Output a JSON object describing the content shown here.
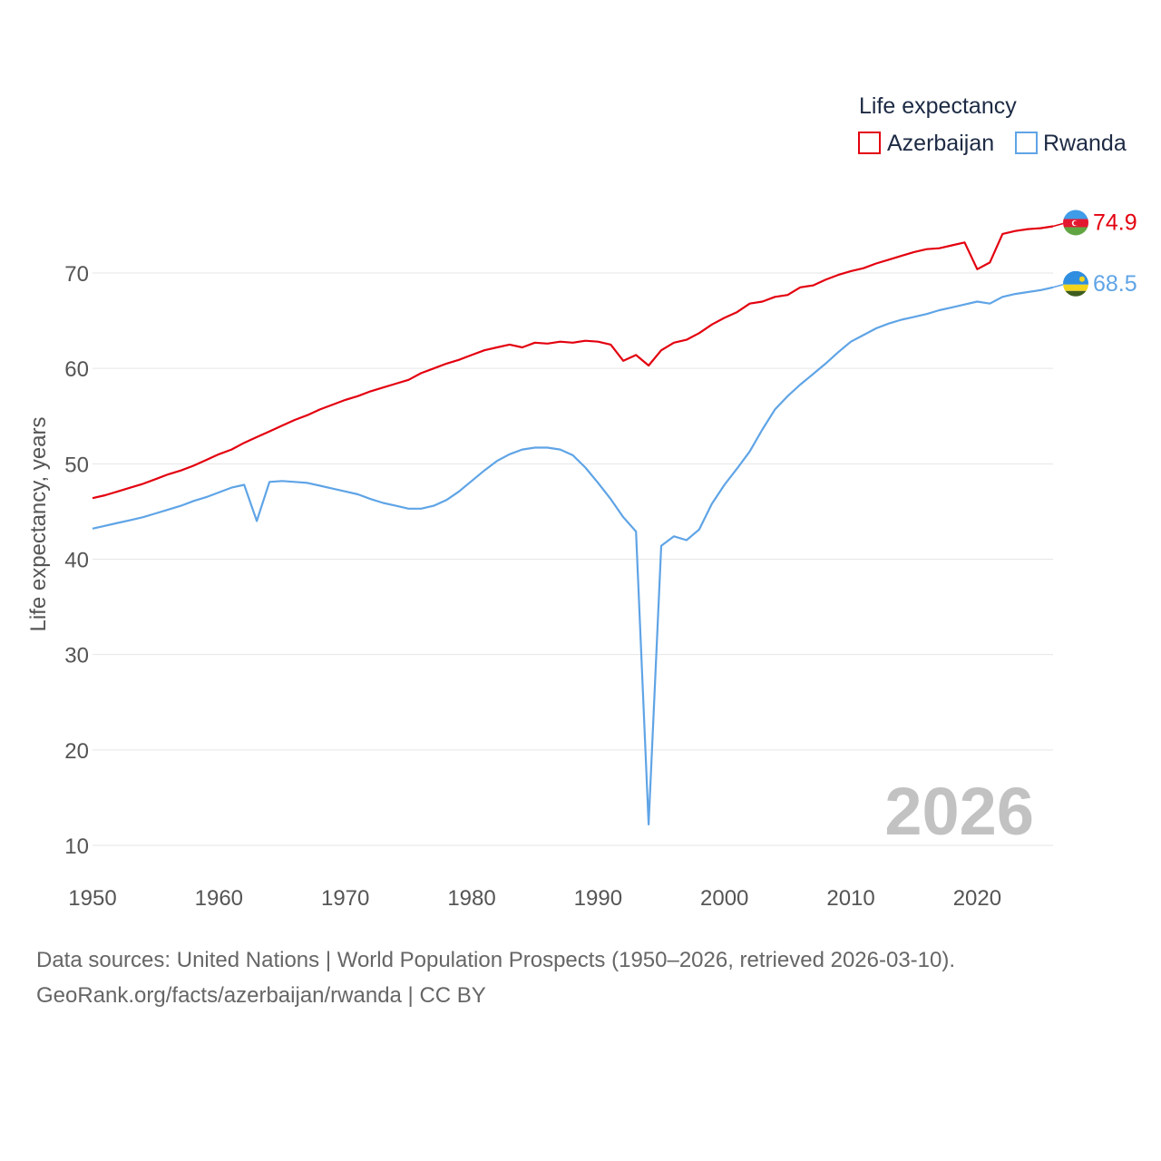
{
  "chart_data": {
    "type": "line",
    "ylabel": "Life expectancy, years",
    "xlim": [
      1950,
      2026
    ],
    "ylim": [
      10,
      75
    ],
    "x_ticks": [
      "1950",
      "1960",
      "1970",
      "1980",
      "1990",
      "2000",
      "2010",
      "2020"
    ],
    "y_ticks": [
      "10",
      "20",
      "30",
      "40",
      "50",
      "60",
      "70"
    ],
    "legend_title": "Life expectancy",
    "year_stamp": "2026",
    "x": [
      1950,
      1951,
      1952,
      1953,
      1954,
      1955,
      1956,
      1957,
      1958,
      1959,
      1960,
      1961,
      1962,
      1963,
      1964,
      1965,
      1966,
      1967,
      1968,
      1969,
      1970,
      1971,
      1972,
      1973,
      1974,
      1975,
      1976,
      1977,
      1978,
      1979,
      1980,
      1981,
      1982,
      1983,
      1984,
      1985,
      1986,
      1987,
      1988,
      1989,
      1990,
      1991,
      1992,
      1993,
      1994,
      1995,
      1996,
      1997,
      1998,
      1999,
      2000,
      2001,
      2002,
      2003,
      2004,
      2005,
      2006,
      2007,
      2008,
      2009,
      2010,
      2011,
      2012,
      2013,
      2014,
      2015,
      2016,
      2017,
      2018,
      2019,
      2020,
      2021,
      2022,
      2023,
      2024,
      2025,
      2026
    ],
    "series": [
      {
        "name": "Azerbaijan",
        "color": "#e3000f",
        "end_label": "74.9",
        "flag": "azerbaijan-flag-icon",
        "values": [
          46.4,
          46.7,
          47.1,
          47.5,
          47.9,
          48.4,
          48.9,
          49.3,
          49.8,
          50.4,
          51.0,
          51.5,
          52.2,
          52.8,
          53.4,
          54.0,
          54.6,
          55.1,
          55.7,
          56.2,
          56.7,
          57.1,
          57.6,
          58.0,
          58.4,
          58.8,
          59.5,
          60.0,
          60.5,
          60.9,
          61.4,
          61.9,
          62.2,
          62.5,
          62.2,
          62.7,
          62.6,
          62.8,
          62.7,
          62.9,
          62.8,
          62.5,
          60.8,
          61.4,
          60.3,
          61.9,
          62.7,
          63.0,
          63.7,
          64.6,
          65.3,
          65.9,
          66.8,
          67.0,
          67.5,
          67.7,
          68.5,
          68.7,
          69.3,
          69.8,
          70.2,
          70.5,
          71.0,
          71.4,
          71.8,
          72.2,
          72.5,
          72.6,
          72.9,
          73.2,
          70.4,
          71.1,
          74.1,
          74.4,
          74.6,
          74.7,
          74.9
        ]
      },
      {
        "name": "Rwanda",
        "color": "#5fa4e6",
        "end_label": "68.5",
        "flag": "rwanda-flag-icon",
        "values": [
          43.2,
          43.5,
          43.8,
          44.1,
          44.4,
          44.8,
          45.2,
          45.6,
          46.1,
          46.5,
          47.0,
          47.5,
          47.8,
          44.0,
          48.1,
          48.2,
          48.1,
          48.0,
          47.7,
          47.4,
          47.1,
          46.8,
          46.3,
          45.9,
          45.6,
          45.3,
          45.3,
          45.6,
          46.2,
          47.1,
          48.2,
          49.3,
          50.3,
          51.0,
          51.5,
          51.7,
          51.7,
          51.5,
          50.9,
          49.6,
          48.0,
          46.3,
          44.4,
          42.9,
          12.2,
          41.4,
          42.4,
          42.0,
          43.1,
          45.8,
          47.8,
          49.5,
          51.3,
          53.6,
          55.7,
          57.1,
          58.3,
          59.4,
          60.5,
          61.7,
          62.8,
          63.5,
          64.2,
          64.7,
          65.1,
          65.4,
          65.7,
          66.1,
          66.4,
          66.7,
          67.0,
          66.8,
          67.5,
          67.8,
          68.0,
          68.2,
          68.5
        ]
      }
    ]
  },
  "source": {
    "line1": "Data sources: United Nations | World Population Prospects (1950–2026, retrieved 2026-03-10).",
    "line2": "GeoRank.org/facts/azerbaijan/rwanda | CC BY"
  }
}
